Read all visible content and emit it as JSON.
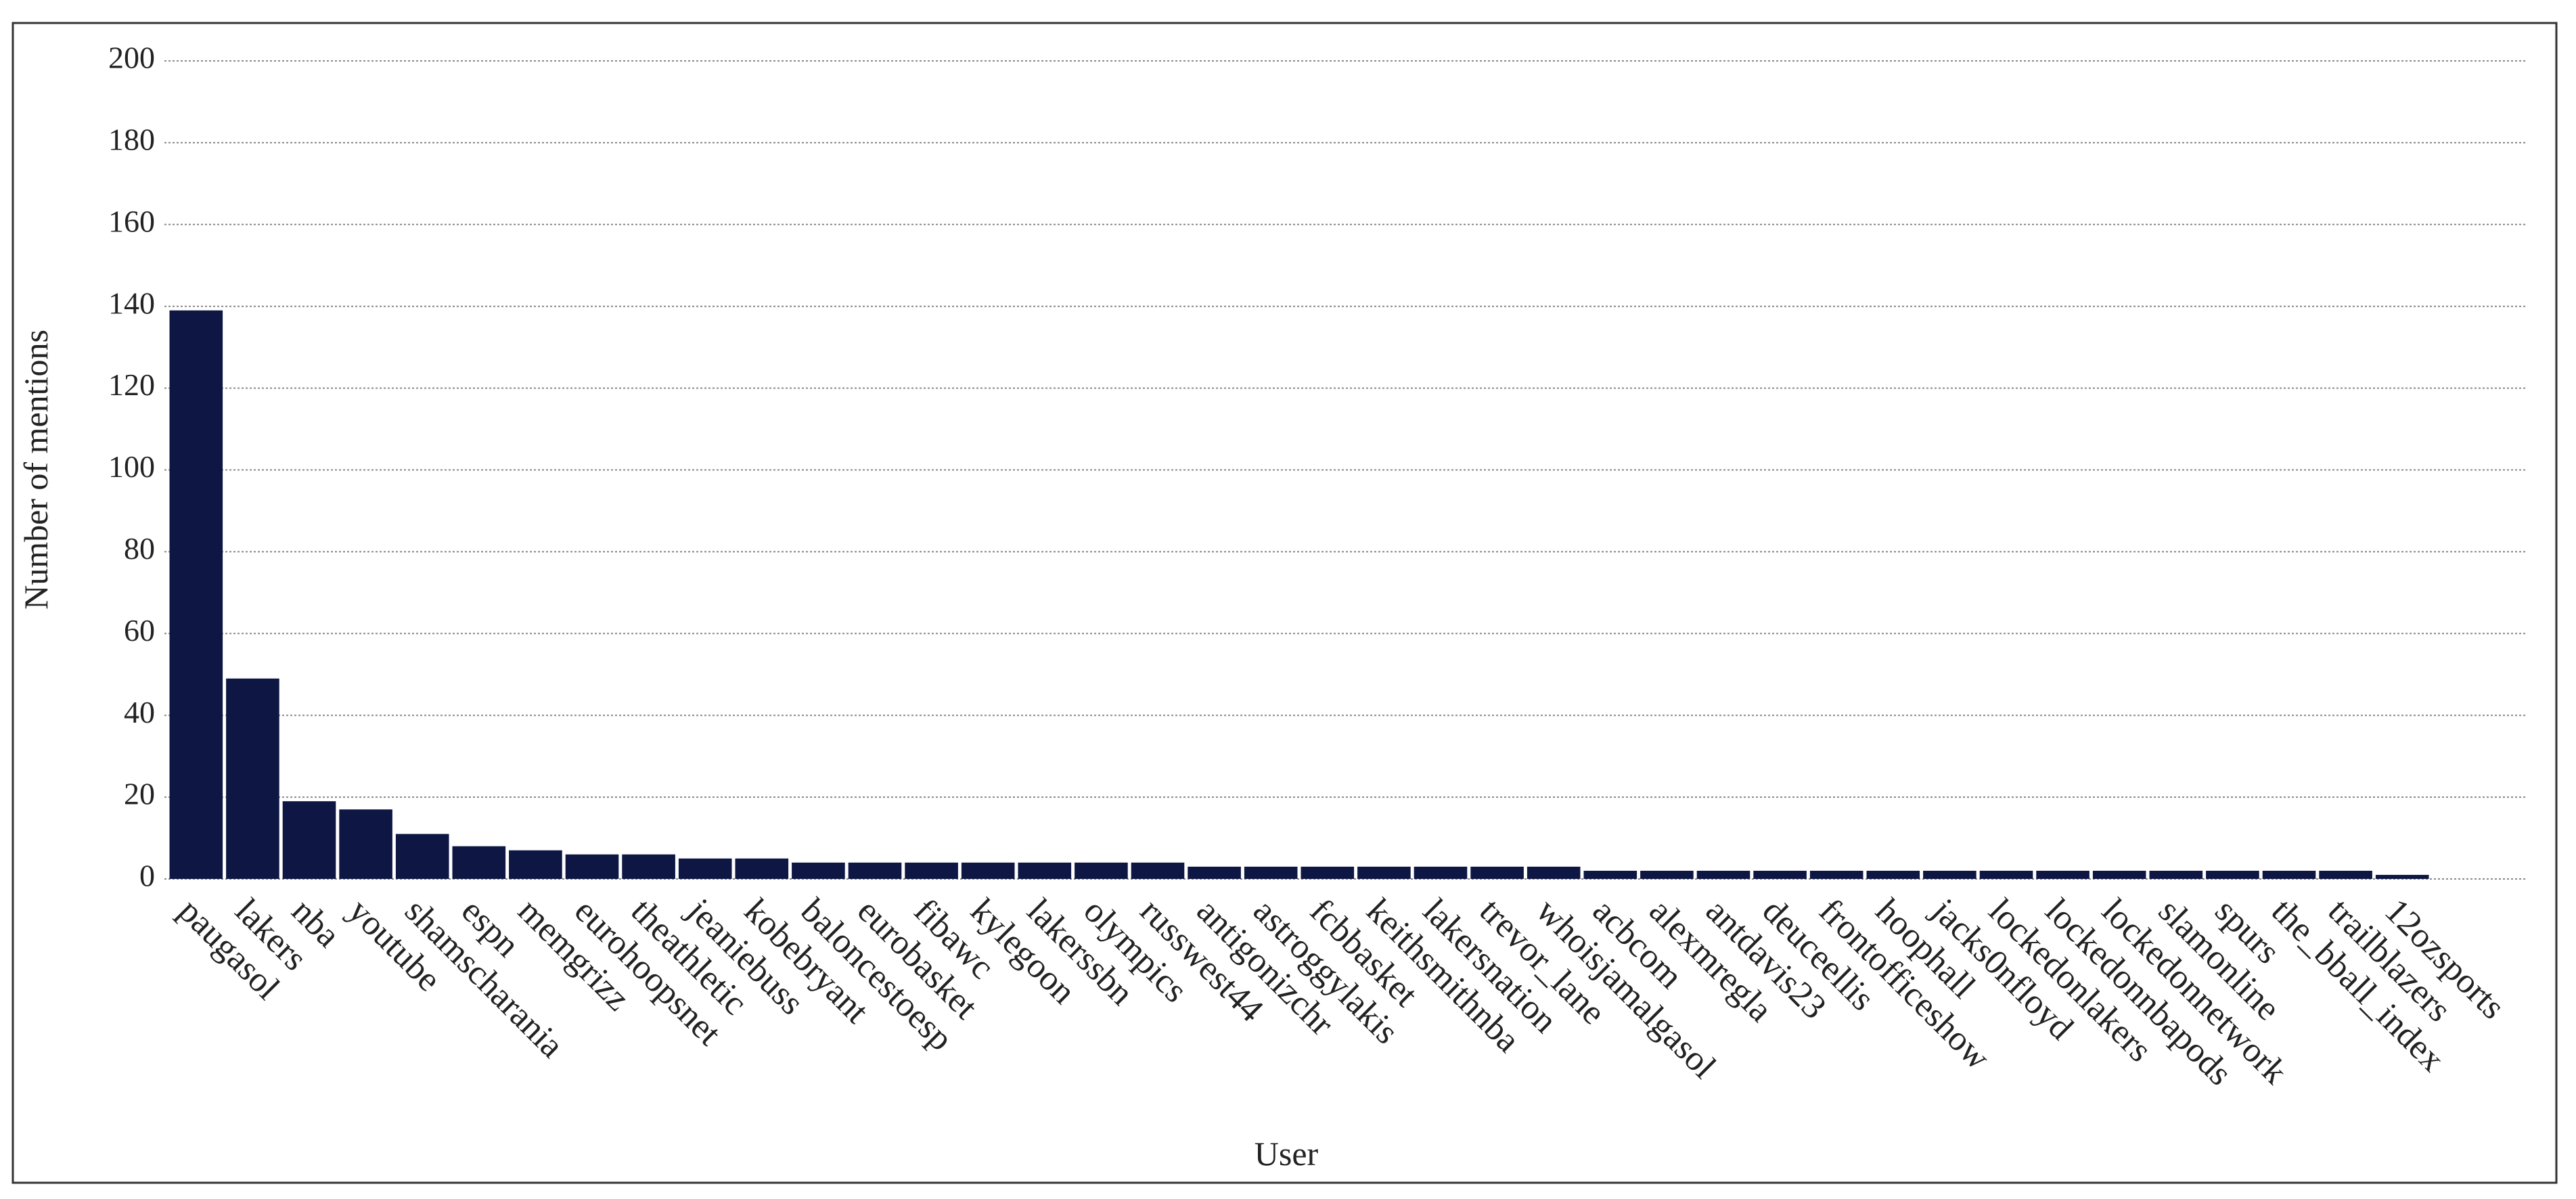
{
  "chart_data": {
    "type": "bar",
    "x_label": "User",
    "y_label": "Number of mentions",
    "categories": [
      "paugasol",
      "lakers",
      "nba",
      "youtube",
      "shamscharania",
      "espn",
      "memgrizz",
      "eurohoopsnet",
      "theathletic",
      "jeaniebuss",
      "kobebryant",
      "baloncestoesp",
      "eurobasket",
      "fibawc",
      "kylegoon",
      "lakerssbn",
      "olympics",
      "russwest44",
      "antigonizchr",
      "astroggylakis",
      "fcbbasket",
      "keithsmithnba",
      "lakersnation",
      "trevor_lane",
      "whoisjamalgasol",
      "acbcom",
      "alexmregla",
      "antdavis23",
      "deuceellis",
      "frontofficeshow",
      "hoophall",
      "jacks0nfloyd",
      "lockedonlakers",
      "lockedonnbapods",
      "lockedonnetwork",
      "slamonline",
      "spurs",
      "the_bball_index",
      "trailblazers",
      "12ozsports"
    ],
    "values": [
      139,
      49,
      19,
      17,
      11,
      8,
      7,
      6,
      6,
      5,
      5,
      4,
      4,
      4,
      4,
      4,
      4,
      4,
      3,
      3,
      3,
      3,
      3,
      3,
      3,
      2,
      2,
      2,
      2,
      2,
      2,
      2,
      2,
      2,
      2,
      2,
      2,
      2,
      2,
      1
    ],
    "color": "#0e1744",
    "ylim": [
      0,
      200
    ],
    "yticks": [
      0,
      20,
      40,
      60,
      80,
      100,
      120,
      140,
      160,
      180,
      200
    ],
    "grid": true
  }
}
